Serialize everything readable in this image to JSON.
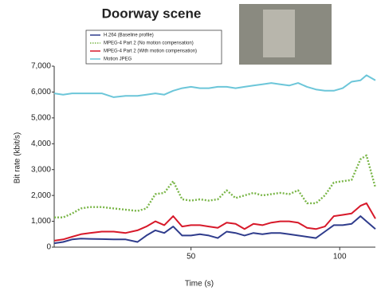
{
  "chart_data": {
    "type": "line",
    "title": "Doorway scene",
    "x_label": "Time (s)",
    "y_label": "Bit rate (kbit/s)",
    "x": [
      4,
      7,
      10,
      13,
      16,
      20,
      24,
      28,
      32,
      35,
      38,
      41,
      44,
      47,
      50,
      53,
      56,
      59,
      62,
      65,
      68,
      71,
      74,
      77,
      80,
      83,
      86,
      89,
      92,
      95,
      98,
      101,
      104,
      107,
      109,
      112
    ],
    "xlim": [
      4,
      112
    ],
    "xticks": [
      50,
      100
    ],
    "ylim": [
      0,
      7000
    ],
    "yticks": [
      0,
      {
        "value": 1000,
        "label": "1,000"
      },
      {
        "value": 2000,
        "label": "2,000"
      },
      {
        "value": 3000,
        "label": "3,000"
      },
      {
        "value": 4000,
        "label": "4,000"
      },
      {
        "value": 5000,
        "label": "5,000"
      },
      {
        "value": 6000,
        "label": "6,000"
      },
      {
        "value": 7000,
        "label": "7,000"
      }
    ],
    "grid": false,
    "series": [
      {
        "name": "H.264 (Baseline profile)",
        "color": "#2f3c8c",
        "dash": false,
        "values": [
          150,
          200,
          300,
          330,
          320,
          310,
          300,
          300,
          200,
          450,
          650,
          550,
          800,
          450,
          450,
          500,
          450,
          350,
          600,
          550,
          450,
          550,
          500,
          550,
          550,
          500,
          450,
          400,
          350,
          600,
          850,
          850,
          900,
          1200,
          1000,
          700
        ]
      },
      {
        "name": "MPEG-4 Part 2 (No motion compensation)",
        "color": "#7ab648",
        "dash": true,
        "values": [
          1150,
          1150,
          1300,
          1500,
          1550,
          1550,
          1500,
          1450,
          1400,
          1500,
          2050,
          2100,
          2550,
          1850,
          1800,
          1850,
          1800,
          1850,
          2200,
          1900,
          2000,
          2100,
          2000,
          2050,
          2100,
          2050,
          2200,
          1700,
          1700,
          2000,
          2500,
          2550,
          2600,
          3400,
          3550,
          2300
        ]
      },
      {
        "name": "MPEG-4 Part 2 (With motion compensation)",
        "color": "#d7192a",
        "dash": false,
        "values": [
          250,
          300,
          400,
          500,
          550,
          600,
          600,
          550,
          650,
          800,
          1000,
          850,
          1200,
          800,
          850,
          850,
          800,
          750,
          950,
          900,
          700,
          900,
          850,
          950,
          1000,
          1000,
          950,
          750,
          700,
          800,
          1200,
          1250,
          1300,
          1600,
          1700,
          1100
        ]
      },
      {
        "name": "Motion JPEG",
        "color": "#6cc6d9",
        "dash": false,
        "values": [
          5950,
          5900,
          5950,
          5950,
          5950,
          5950,
          5800,
          5850,
          5850,
          5900,
          5950,
          5900,
          6050,
          6150,
          6200,
          6150,
          6150,
          6200,
          6200,
          6150,
          6200,
          6250,
          6300,
          6350,
          6300,
          6250,
          6350,
          6200,
          6100,
          6050,
          6050,
          6150,
          6400,
          6450,
          6650,
          6450
        ]
      }
    ]
  }
}
